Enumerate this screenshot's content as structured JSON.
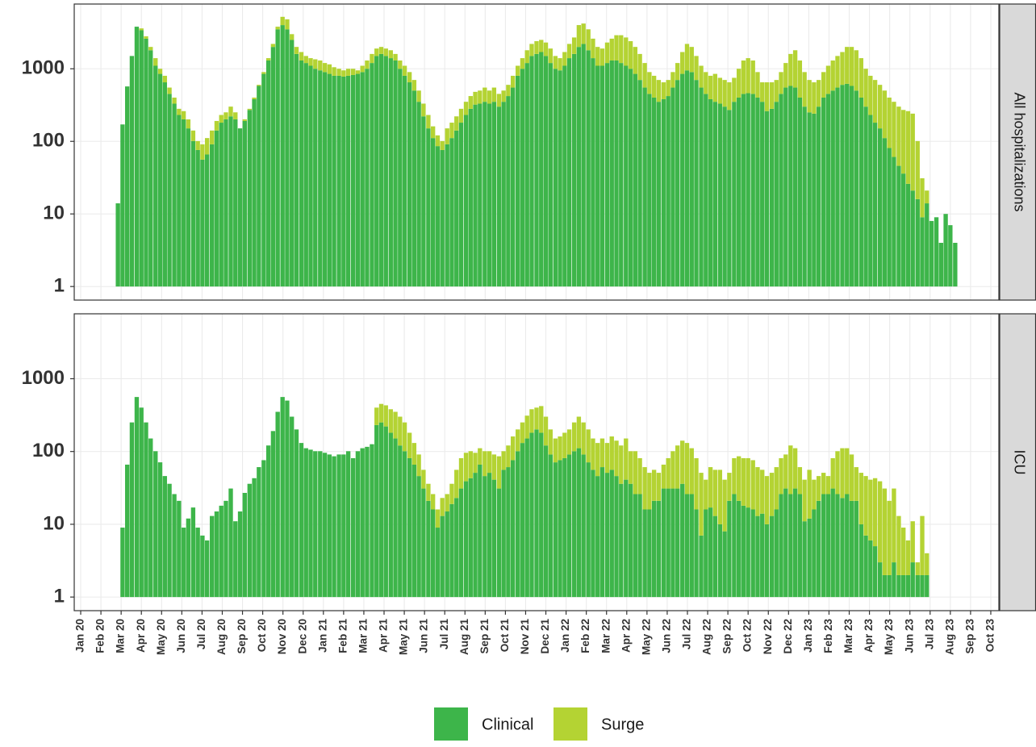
{
  "chart_data": {
    "type": "bar",
    "stacked": true,
    "log_y": true,
    "grid": true,
    "legend": "bottom",
    "series": [
      {
        "name": "Clinical",
        "color": "#3db54a"
      },
      {
        "name": "Surge",
        "color": "#b4d333"
      }
    ],
    "xlim": [
      -0.32,
      45.4
    ],
    "xticks": [
      {
        "value": 0,
        "label": "Jan 20"
      },
      {
        "value": 1,
        "label": "Feb 20"
      },
      {
        "value": 2,
        "label": "Mar 20"
      },
      {
        "value": 3,
        "label": "Apr 20"
      },
      {
        "value": 4,
        "label": "May 20"
      },
      {
        "value": 5,
        "label": "Jun 20"
      },
      {
        "value": 6,
        "label": "Jul 20"
      },
      {
        "value": 7,
        "label": "Aug 20"
      },
      {
        "value": 8,
        "label": "Sep 20"
      },
      {
        "value": 9,
        "label": "Oct 20"
      },
      {
        "value": 10,
        "label": "Nov 20"
      },
      {
        "value": 11,
        "label": "Dec 20"
      },
      {
        "value": 12,
        "label": "Jan 21"
      },
      {
        "value": 13,
        "label": "Feb 21"
      },
      {
        "value": 14,
        "label": "Mar 21"
      },
      {
        "value": 15,
        "label": "Apr 21"
      },
      {
        "value": 16,
        "label": "May 21"
      },
      {
        "value": 17,
        "label": "Jun 21"
      },
      {
        "value": 18,
        "label": "Jul 21"
      },
      {
        "value": 19,
        "label": "Aug 21"
      },
      {
        "value": 20,
        "label": "Sep 21"
      },
      {
        "value": 21,
        "label": "Oct 21"
      },
      {
        "value": 22,
        "label": "Nov 21"
      },
      {
        "value": 23,
        "label": "Dec 21"
      },
      {
        "value": 24,
        "label": "Jan 22"
      },
      {
        "value": 25,
        "label": "Feb 22"
      },
      {
        "value": 26,
        "label": "Mar 22"
      },
      {
        "value": 27,
        "label": "Apr 22"
      },
      {
        "value": 28,
        "label": "May 22"
      },
      {
        "value": 29,
        "label": "Jun 22"
      },
      {
        "value": 30,
        "label": "Jul 22"
      },
      {
        "value": 31,
        "label": "Aug 22"
      },
      {
        "value": 32,
        "label": "Sep 22"
      },
      {
        "value": 33,
        "label": "Oct 22"
      },
      {
        "value": 34,
        "label": "Nov 22"
      },
      {
        "value": 35,
        "label": "Dec 22"
      },
      {
        "value": 36,
        "label": "Jan 23"
      },
      {
        "value": 37,
        "label": "Feb 23"
      },
      {
        "value": 38,
        "label": "Mar 23"
      },
      {
        "value": 39,
        "label": "Apr 23"
      },
      {
        "value": 40,
        "label": "May 23"
      },
      {
        "value": 41,
        "label": "Jun 23"
      },
      {
        "value": 42,
        "label": "Jul 23"
      },
      {
        "value": 43,
        "label": "Aug 23"
      },
      {
        "value": 44,
        "label": "Sep 23"
      },
      {
        "value": 45,
        "label": "Oct 23"
      }
    ],
    "ylim": [
      0.65,
      7800
    ],
    "yticks": [
      1,
      10,
      100,
      1000
    ],
    "x": [
      1.84,
      2.07,
      2.3,
      2.53,
      2.77,
      3.0,
      3.23,
      3.46,
      3.7,
      3.93,
      4.16,
      4.39,
      4.63,
      4.86,
      5.09,
      5.32,
      5.56,
      5.79,
      6.02,
      6.25,
      6.49,
      6.72,
      6.95,
      7.18,
      7.42,
      7.65,
      7.88,
      8.11,
      8.35,
      8.58,
      8.81,
      9.05,
      9.28,
      9.51,
      9.74,
      9.98,
      10.21,
      10.44,
      10.67,
      10.91,
      11.14,
      11.37,
      11.6,
      11.84,
      12.07,
      12.3,
      12.53,
      12.77,
      13.0,
      13.23,
      13.47,
      13.7,
      13.93,
      14.16,
      14.4,
      14.63,
      14.86,
      15.09,
      15.33,
      15.56,
      15.79,
      16.02,
      16.26,
      16.49,
      16.72,
      16.95,
      17.19,
      17.42,
      17.65,
      17.88,
      18.12,
      18.35,
      18.58,
      18.81,
      19.05,
      19.28,
      19.51,
      19.74,
      19.98,
      20.21,
      20.44,
      20.68,
      20.91,
      21.14,
      21.37,
      21.61,
      21.84,
      22.07,
      22.3,
      22.54,
      22.77,
      23.0,
      23.23,
      23.47,
      23.7,
      23.93,
      24.16,
      24.4,
      24.63,
      24.86,
      25.1,
      25.33,
      25.56,
      25.79,
      26.03,
      26.26,
      26.49,
      26.72,
      26.96,
      27.19,
      27.42,
      27.65,
      27.89,
      28.12,
      28.35,
      28.58,
      28.82,
      29.05,
      29.28,
      29.51,
      29.75,
      29.98,
      30.21,
      30.44,
      30.68,
      30.91,
      31.14,
      31.37,
      31.61,
      31.84,
      32.07,
      32.31,
      32.54,
      32.77,
      33.0,
      33.24,
      33.47,
      33.7,
      33.93,
      34.17,
      34.4,
      34.63,
      34.86,
      35.1,
      35.33,
      35.56,
      35.79,
      36.03,
      36.26,
      36.49,
      36.73,
      36.96,
      37.19,
      37.42,
      37.66,
      37.89,
      38.12,
      38.35,
      38.59,
      38.82,
      39.05,
      39.28,
      39.52,
      39.75,
      39.98,
      40.21,
      40.45,
      40.68,
      40.91,
      41.14,
      41.38,
      41.61,
      41.84,
      42.07,
      42.31,
      42.54,
      42.77,
      43.0,
      43.24
    ],
    "facets": [
      {
        "label": "All hospitalizations",
        "values": [
          [
            13,
            170,
            570,
            1500,
            3800,
            3400,
            2600,
            1800,
            1100,
            850,
            650,
            450,
            330,
            230,
            200,
            150,
            100,
            75,
            55,
            65,
            90,
            140,
            180,
            200,
            220,
            200,
            150,
            190,
            270,
            380,
            580,
            850,
            1300,
            2000,
            3500,
            4000,
            3500,
            2500,
            1600,
            1300,
            1200,
            1100,
            1000,
            950,
            900,
            850,
            800,
            800,
            780,
            800,
            820,
            850,
            900,
            1000,
            1200,
            1500,
            1600,
            1500,
            1400,
            1300,
            1000,
            800,
            650,
            500,
            350,
            220,
            150,
            110,
            85,
            75,
            90,
            110,
            140,
            180,
            230,
            280,
            320,
            330,
            350,
            330,
            350,
            300,
            350,
            420,
            550,
            800,
            1000,
            1200,
            1500,
            1600,
            1700,
            1500,
            1200,
            1000,
            950,
            1100,
            1400,
            1600,
            2000,
            2200,
            1800,
            1400,
            1100,
            1100,
            1200,
            1300,
            1300,
            1200,
            1100,
            1000,
            850,
            700,
            550,
            450,
            400,
            350,
            380,
            420,
            550,
            700,
            850,
            950,
            900,
            700,
            550,
            450,
            380,
            350,
            330,
            300,
            270,
            350,
            400,
            450,
            460,
            450,
            400,
            350,
            260,
            280,
            350,
            450,
            550,
            580,
            550,
            400,
            300,
            250,
            240,
            300,
            400,
            450,
            500,
            550,
            600,
            620,
            580,
            500,
            400,
            300,
            230,
            180,
            150,
            110,
            80,
            60,
            45,
            35,
            25,
            20,
            15,
            8,
            13,
            7,
            8,
            3,
            9,
            6,
            3
          ],
          [
            0,
            0,
            0,
            0,
            0,
            200,
            200,
            200,
            300,
            150,
            150,
            100,
            70,
            50,
            60,
            50,
            40,
            25,
            35,
            45,
            50,
            50,
            50,
            50,
            80,
            50,
            0,
            10,
            10,
            20,
            20,
            50,
            100,
            200,
            300,
            1200,
            1300,
            500,
            400,
            400,
            300,
            300,
            350,
            350,
            300,
            300,
            250,
            200,
            170,
            200,
            180,
            100,
            200,
            300,
            400,
            400,
            400,
            400,
            400,
            300,
            300,
            300,
            250,
            200,
            150,
            110,
            80,
            50,
            35,
            25,
            60,
            70,
            80,
            100,
            120,
            140,
            160,
            170,
            200,
            170,
            200,
            150,
            150,
            180,
            250,
            300,
            400,
            600,
            700,
            800,
            800,
            800,
            700,
            500,
            450,
            600,
            800,
            1100,
            2000,
            2000,
            1700,
            1200,
            900,
            800,
            1100,
            1300,
            1600,
            1700,
            1600,
            1400,
            1150,
            900,
            650,
            450,
            400,
            350,
            270,
            280,
            350,
            500,
            850,
            1250,
            1100,
            800,
            550,
            450,
            420,
            500,
            420,
            400,
            380,
            400,
            600,
            850,
            940,
            850,
            500,
            300,
            390,
            370,
            350,
            450,
            650,
            1020,
            1250,
            900,
            600,
            450,
            410,
            400,
            500,
            650,
            800,
            950,
            1100,
            1380,
            1420,
            1300,
            1000,
            700,
            570,
            520,
            450,
            390,
            320,
            290,
            255,
            235,
            235,
            220,
            85,
            22,
            7,
            0,
            0,
            0,
            0,
            0,
            0
          ]
        ]
      },
      {
        "label": "ICU",
        "values": [
          [
            null,
            8,
            65,
            250,
            560,
            400,
            250,
            150,
            100,
            70,
            45,
            35,
            25,
            20,
            8,
            11,
            16,
            8,
            6,
            5,
            12,
            14,
            17,
            20,
            30,
            10,
            14,
            26,
            35,
            42,
            60,
            75,
            120,
            190,
            350,
            560,
            500,
            300,
            200,
            130,
            110,
            105,
            100,
            100,
            95,
            90,
            85,
            90,
            90,
            100,
            80,
            100,
            110,
            115,
            125,
            230,
            250,
            220,
            180,
            150,
            120,
            100,
            80,
            65,
            45,
            30,
            20,
            15,
            8,
            12,
            14,
            18,
            22,
            30,
            38,
            42,
            50,
            65,
            45,
            50,
            40,
            30,
            55,
            60,
            75,
            100,
            130,
            150,
            180,
            200,
            180,
            120,
            90,
            70,
            75,
            80,
            90,
            100,
            110,
            90,
            70,
            55,
            45,
            60,
            50,
            55,
            45,
            35,
            40,
            35,
            25,
            25,
            15,
            15,
            20,
            20,
            30,
            30,
            30,
            30,
            35,
            25,
            25,
            15,
            6,
            15,
            16,
            12,
            9,
            7,
            20,
            25,
            20,
            17,
            16,
            15,
            12,
            13,
            9,
            12,
            15,
            25,
            30,
            25,
            30,
            25,
            10,
            11,
            15,
            20,
            25,
            25,
            30,
            25,
            22,
            25,
            20,
            20,
            9,
            6,
            5,
            4,
            2,
            1,
            1,
            2,
            1,
            1,
            1,
            2,
            1,
            1,
            1,
            null,
            null,
            null,
            null,
            null,
            null
          ],
          [
            null,
            0,
            0,
            0,
            0,
            0,
            0,
            0,
            0,
            0,
            0,
            0,
            0,
            0,
            0,
            0,
            0,
            0,
            0,
            0,
            0,
            0,
            0,
            0,
            0,
            0,
            0,
            0,
            0,
            0,
            0,
            0,
            0,
            0,
            0,
            0,
            0,
            0,
            0,
            0,
            0,
            0,
            0,
            0,
            0,
            0,
            0,
            0,
            0,
            0,
            0,
            0,
            0,
            0,
            0,
            170,
            200,
            210,
            200,
            200,
            180,
            150,
            100,
            65,
            45,
            25,
            15,
            10,
            7,
            10,
            11,
            17,
            33,
            50,
            57,
            58,
            45,
            45,
            55,
            50,
            50,
            55,
            45,
            60,
            85,
            100,
            120,
            160,
            200,
            200,
            240,
            180,
            110,
            80,
            85,
            100,
            110,
            150,
            190,
            160,
            130,
            95,
            85,
            90,
            80,
            105,
            95,
            85,
            110,
            65,
            75,
            55,
            45,
            35,
            35,
            30,
            35,
            50,
            70,
            90,
            105,
            105,
            85,
            65,
            44,
            25,
            44,
            43,
            46,
            33,
            30,
            55,
            65,
            63,
            64,
            60,
            48,
            42,
            36,
            38,
            45,
            55,
            60,
            95,
            80,
            35,
            30,
            44,
            25,
            25,
            25,
            20,
            50,
            75,
            88,
            85,
            70,
            40,
            41,
            39,
            35,
            38,
            36,
            29,
            19,
            28,
            11,
            7,
            4,
            8,
            1,
            11,
            2,
            null,
            null,
            null,
            null,
            null,
            null
          ]
        ]
      }
    ]
  }
}
